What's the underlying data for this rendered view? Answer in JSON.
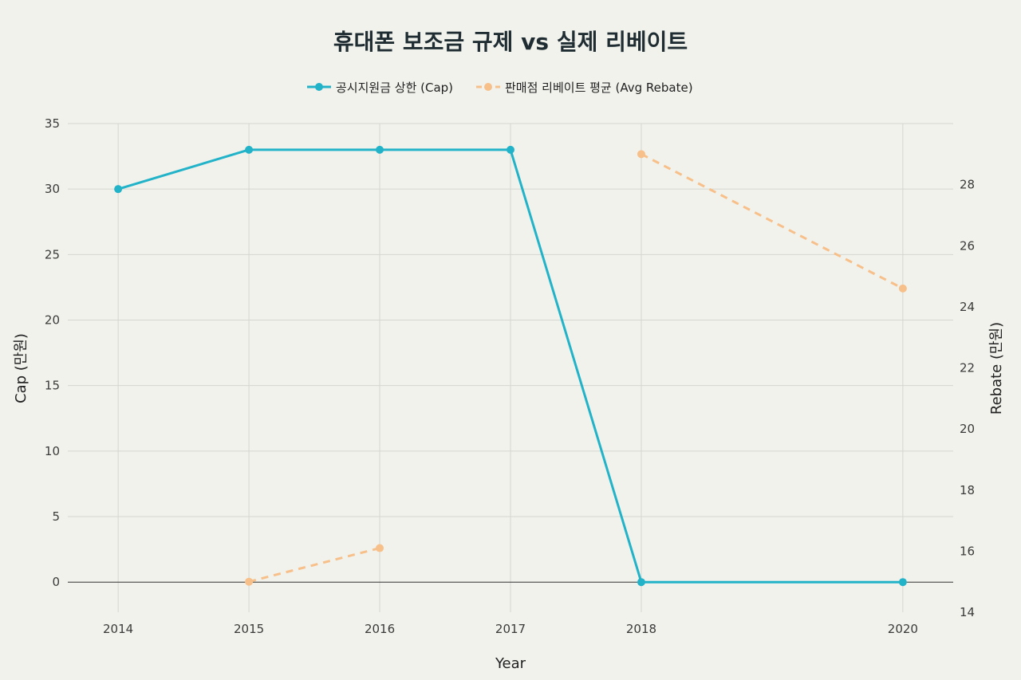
{
  "chart_data": {
    "type": "line",
    "title": "휴대폰 보조금 규제 vs 실제 리베이트",
    "xlabel": "Year",
    "ylabel": "Cap (만원)",
    "y2label": "Rebate (만원)",
    "x_ticks": [
      2014,
      2015,
      2016,
      2017,
      2018,
      2020
    ],
    "ylim": [
      -2.3,
      35
    ],
    "y_ticks": [
      0,
      5,
      10,
      15,
      20,
      25,
      30,
      35
    ],
    "y2lim": [
      14,
      30
    ],
    "y2_ticks": [
      14,
      16,
      18,
      20,
      22,
      24,
      26,
      28
    ],
    "legend_position": "top-center",
    "grid": true,
    "series": [
      {
        "name": "공시지원금 상한 (Cap)",
        "axis": "left",
        "color": "#22b3c9",
        "dash": "solid",
        "points": [
          {
            "x": 2014,
            "y": 30
          },
          {
            "x": 2015,
            "y": 33
          },
          {
            "x": 2016,
            "y": 33
          },
          {
            "x": 2017,
            "y": 33
          },
          {
            "x": 2018,
            "y": 0
          },
          {
            "x": 2020,
            "y": 0
          }
        ]
      },
      {
        "name": "판매점 리베이트 평균 (Avg Rebate)",
        "axis": "right",
        "color": "#f7c08a",
        "dash": "dashed",
        "segments": [
          [
            {
              "x": 2015,
              "y": 15
            },
            {
              "x": 2016,
              "y": 16.1
            }
          ],
          [
            {
              "x": 2018,
              "y": 29
            },
            {
              "x": 2020,
              "y": 24.6
            }
          ]
        ]
      }
    ]
  }
}
